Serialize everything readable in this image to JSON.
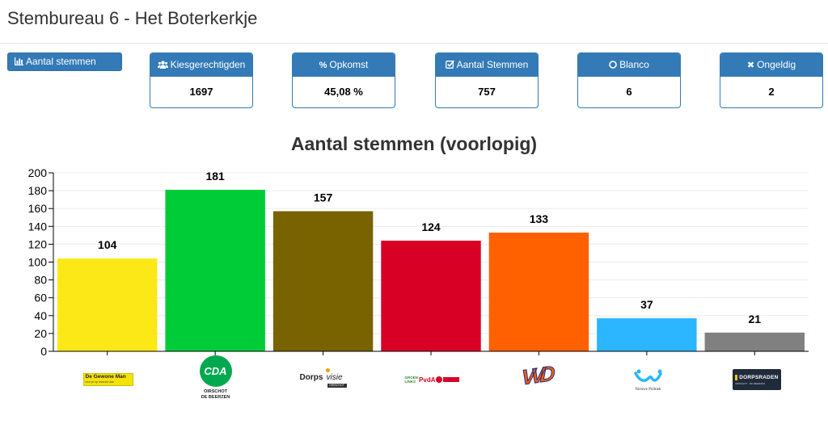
{
  "header": {
    "title": "Stembureau 6 - Het Boterkerkje"
  },
  "nav": {
    "aantal_stemmen_label": "Aantal stemmen"
  },
  "stats": [
    {
      "key": "kiesgerechtigden",
      "icon": "users-icon",
      "label": "Kiesgerechtigden",
      "value": "1697"
    },
    {
      "key": "opkomst",
      "icon": "percent-icon",
      "label": "Opkomst",
      "value": "45,08 %"
    },
    {
      "key": "aantal-stemmen",
      "icon": "check-square-icon",
      "label": "Aantal Stemmen",
      "value": "757"
    },
    {
      "key": "blanco",
      "icon": "circle-icon",
      "label": "Blanco",
      "value": "6"
    },
    {
      "key": "ongeldig",
      "icon": "times-icon",
      "label": "Ongeldig",
      "value": "2"
    }
  ],
  "chart_data": {
    "type": "bar",
    "title": "Aantal stemmen (voorlopig)",
    "xlabel": "",
    "ylabel": "",
    "ylim": [
      0,
      200
    ],
    "yticks": [
      0,
      20,
      40,
      60,
      80,
      100,
      120,
      140,
      160,
      180,
      200
    ],
    "grid": true,
    "categories": [
      "de-gewone-man-logo",
      "cda-logo",
      "dorpsvisie-logo",
      "groenlinks-pvda-logo",
      "vvd-logo",
      "nieuwe-politiek-logo",
      "dorpsraden-logo"
    ],
    "values": [
      104,
      181,
      157,
      124,
      133,
      37,
      21
    ],
    "colors": [
      "#fce816",
      "#00cc37",
      "#786300",
      "#d90026",
      "#ff6000",
      "#2bb6ff",
      "#808080"
    ]
  },
  "logos": {
    "de_gewone_man": {
      "name": "De Gewone Man",
      "tagline": "voor je op rekenen kan"
    },
    "cda": {
      "name": "CDA",
      "line1": "OIRSCHOT",
      "line2": "DE BEERZEN"
    },
    "dorpsvisie": {
      "name_a": "Dorps",
      "name_b": "visie",
      "tag": "OIRSCHOT"
    },
    "groenlinks_pvda": {
      "name_a": "GROEN",
      "name_b": "LINKS",
      "name_c": "PvdA"
    },
    "vvd": {
      "name": "VVD"
    },
    "nieuwe_politiek": {
      "name": "Nieuwe Politiek"
    },
    "dorpsraden": {
      "name": "DORPSRADEN",
      "tag": "OIRSCHOT · DE BEERZEN"
    }
  }
}
